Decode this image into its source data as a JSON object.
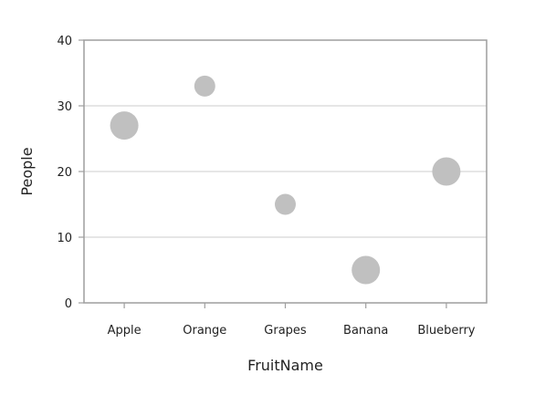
{
  "chart_data": {
    "type": "scatter",
    "title": "",
    "xlabel": "FruitName",
    "ylabel": "People",
    "categories": [
      "Apple",
      "Orange",
      "Grapes",
      "Banana",
      "Blueberry"
    ],
    "ylim": [
      0,
      40
    ],
    "yticks": [
      0,
      10,
      20,
      30,
      40
    ],
    "grid": true,
    "legend": "none",
    "series": [
      {
        "values": [
          27,
          33,
          15,
          5,
          20
        ],
        "sizes": [
          5,
          3,
          3,
          5,
          5
        ],
        "color": "#c0c0c0"
      }
    ]
  },
  "colors": {
    "grid": "#d8d8d8",
    "axis": "#9e9e9e",
    "marker": "#c0c0c0"
  }
}
